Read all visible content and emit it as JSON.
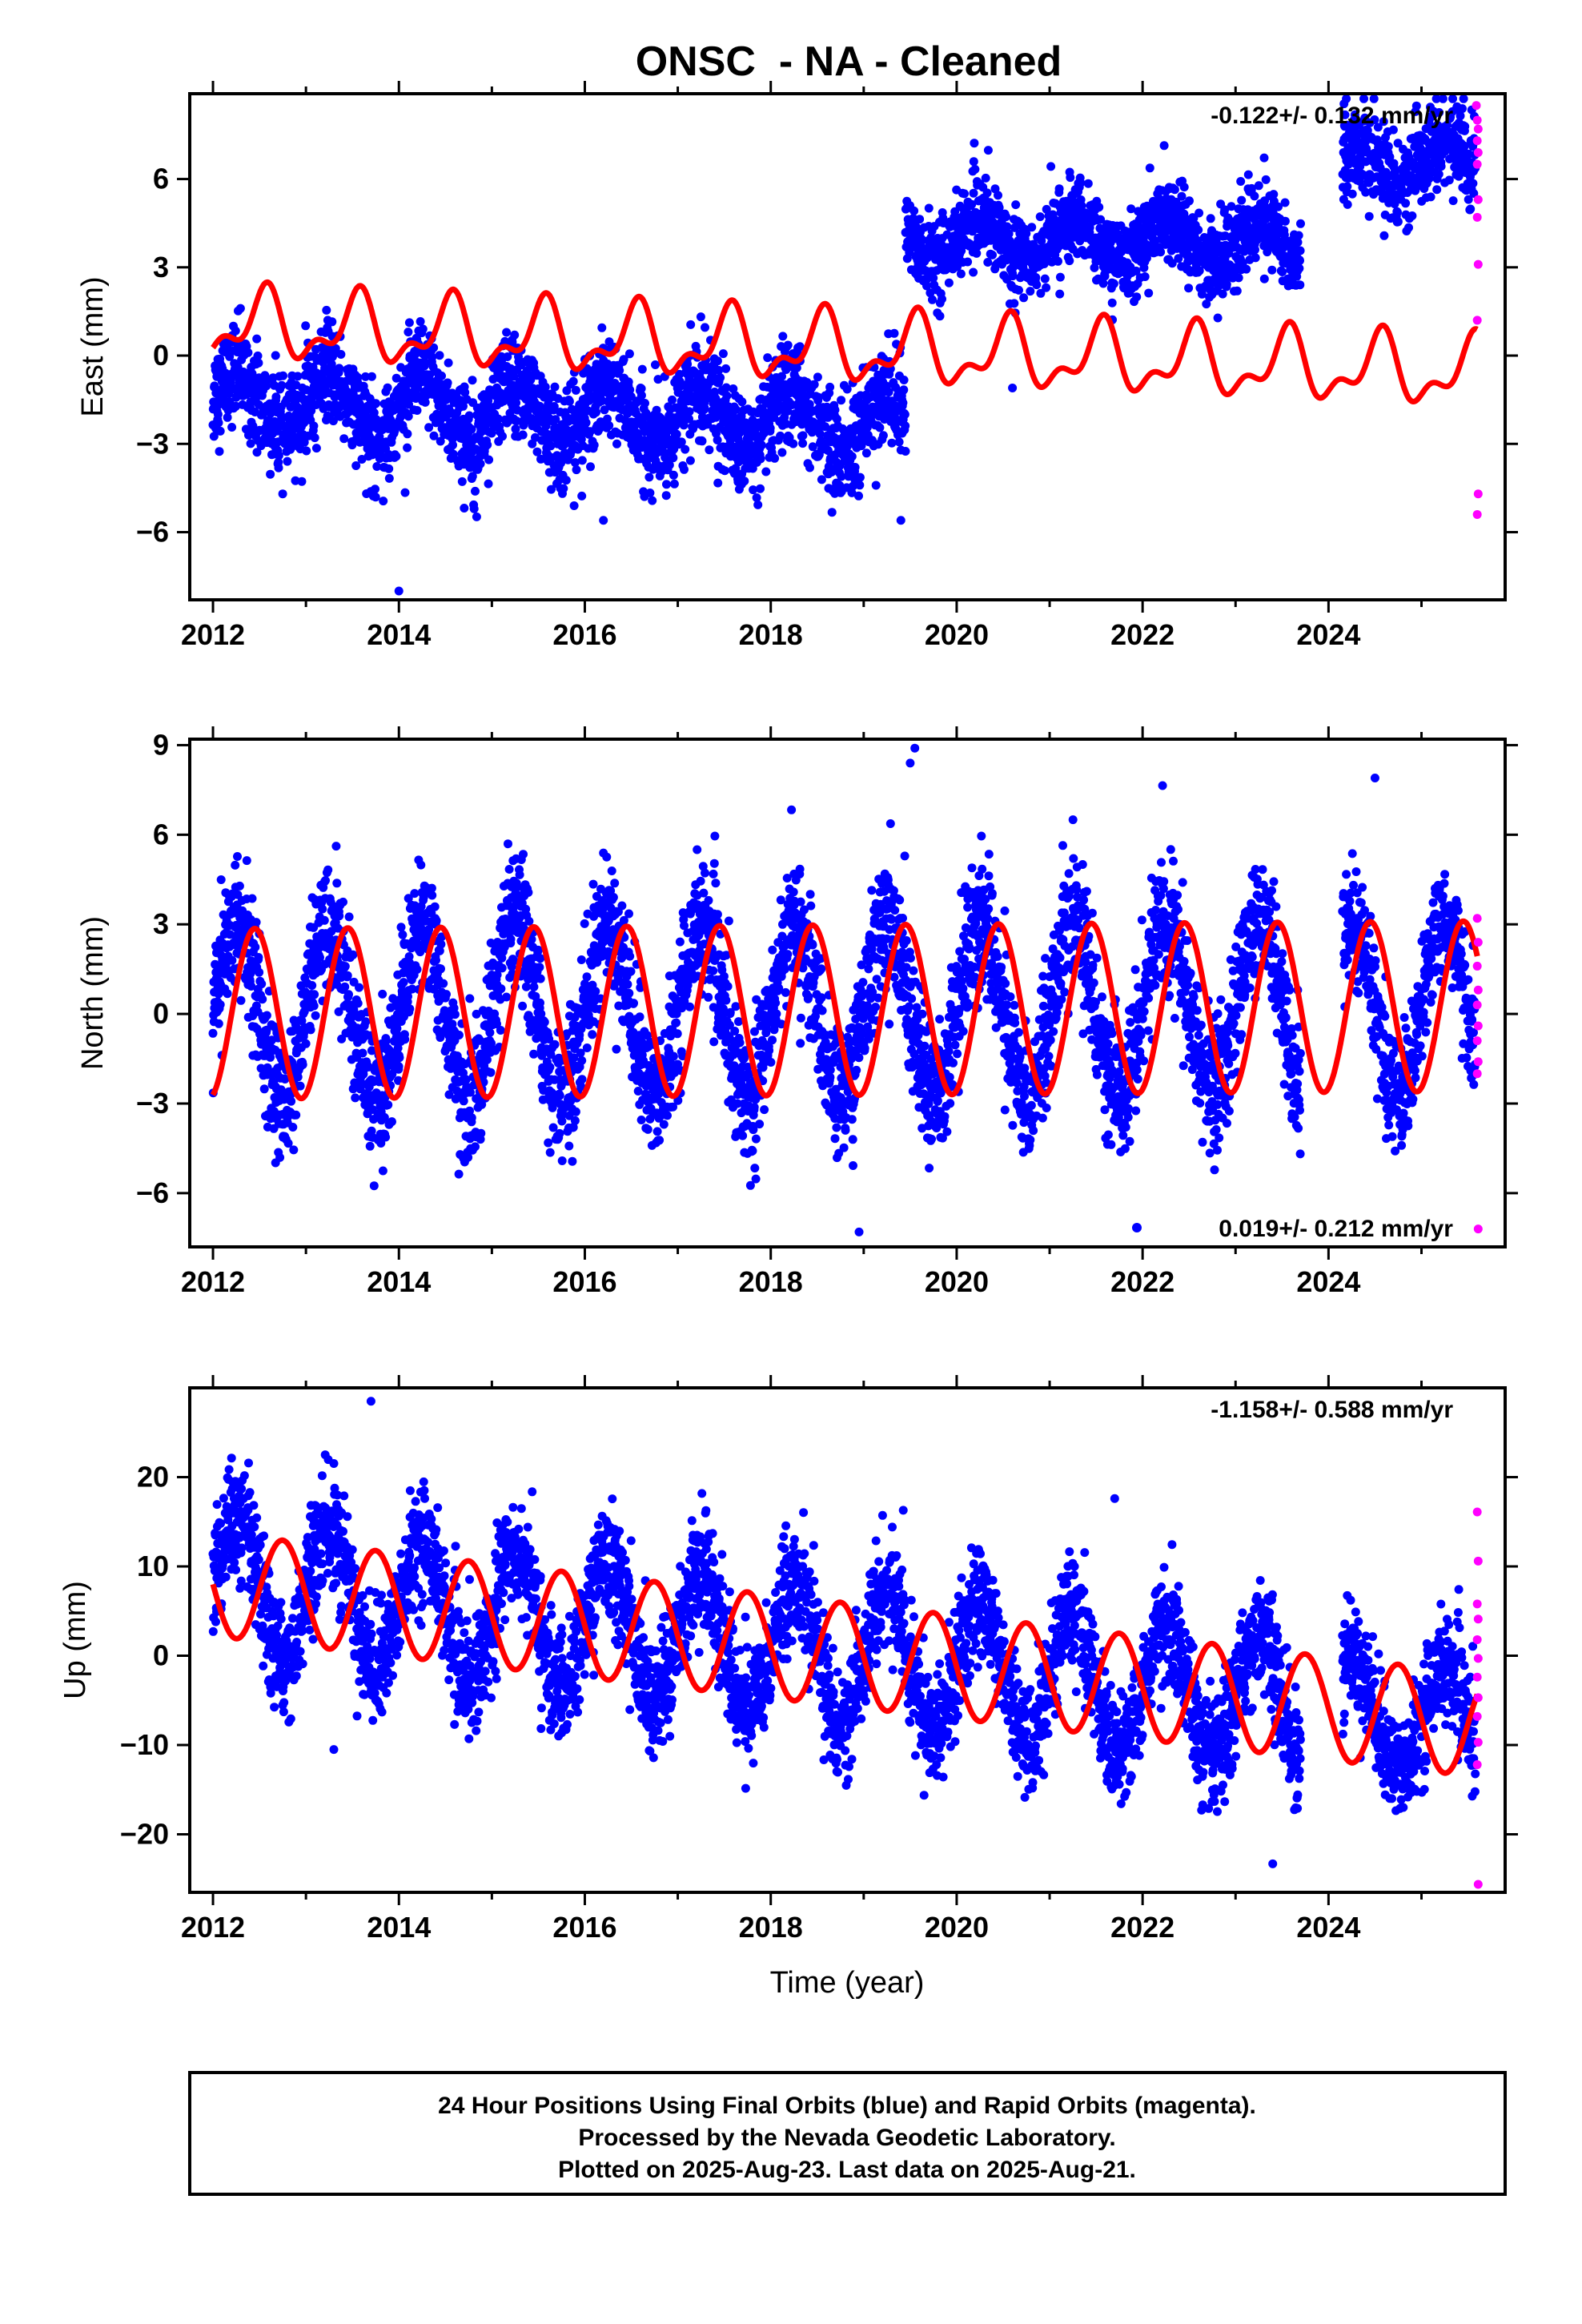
{
  "title": "ONSC  - NA - Cleaned",
  "xlabel": "Time (year)",
  "footer": {
    "line1": "24 Hour Positions Using Final Orbits (blue) and Rapid Orbits (magenta).",
    "line2": "Processed by the Nevada Geodetic Laboratory.",
    "line3": "Plotted on 2025-Aug-23. Last data on 2025-Aug-21."
  },
  "colors": {
    "final": "#0000ff",
    "rapid": "#ff00ff",
    "model": "#ff0000",
    "frame": "#000000"
  },
  "chart_data": [
    {
      "type": "scatter",
      "id": "east",
      "ylabel": "East (mm)",
      "rate": "-0.122+/- 0.132 mm/yr",
      "xlim": [
        2011.75,
        2025.9
      ],
      "ylim": [
        -8.3,
        8.9
      ],
      "xticks": [
        2012,
        2014,
        2016,
        2018,
        2020,
        2022,
        2024
      ],
      "yticks": [
        -6,
        -3,
        0,
        3,
        6
      ],
      "ytick_labels": [
        "−6",
        "−3",
        "0",
        "3",
        "6"
      ],
      "segments": [
        {
          "start": 2012.0,
          "end": 2019.45,
          "offset": -1.5,
          "trend": -0.12,
          "amp": 1.0,
          "spread": 1.1
        },
        {
          "start": 2019.45,
          "end": 2023.7,
          "offset": 4.4,
          "trend": -0.05,
          "amp": 0.7,
          "spread": 0.9
        },
        {
          "start": 2024.15,
          "end": 2025.58,
          "offset": 4.0,
          "trend": 0.2,
          "amp": 0.6,
          "spread": 1.0
        }
      ],
      "outliers": [
        [
          2014.0,
          -8.0
        ],
        [
          2020.6,
          -1.1
        ],
        [
          2019.4,
          -5.6
        ],
        [
          2016.2,
          -5.6
        ]
      ],
      "rapid": [
        [
          2025.59,
          8.5
        ],
        [
          2025.6,
          8.0
        ],
        [
          2025.61,
          7.7
        ],
        [
          2025.6,
          7.3
        ],
        [
          2025.61,
          6.9
        ],
        [
          2025.6,
          6.5
        ],
        [
          2025.61,
          5.3
        ],
        [
          2025.6,
          4.7
        ],
        [
          2025.61,
          3.1
        ],
        [
          2025.6,
          1.2
        ],
        [
          2025.61,
          -4.7
        ],
        [
          2025.6,
          -5.4
        ]
      ],
      "model": {
        "start": 2012.0,
        "end": 2025.6,
        "base": 1.05,
        "trend": -0.122,
        "t0": 2012.0,
        "amp_annual": 1.0,
        "phase_annual": 2012.55,
        "amp_semi": 0.55,
        "phase_semi": 2012.1
      }
    },
    {
      "type": "scatter",
      "id": "north",
      "ylabel": "North (mm)",
      "rate": "0.019+/- 0.212 mm/yr",
      "xlim": [
        2011.75,
        2025.9
      ],
      "ylim": [
        -7.8,
        9.2
      ],
      "xticks": [
        2012,
        2014,
        2016,
        2018,
        2020,
        2022,
        2024
      ],
      "yticks": [
        -6,
        -3,
        0,
        3,
        6,
        9
      ],
      "ytick_labels": [
        "−6",
        "−3",
        "0",
        "3",
        "6",
        "9"
      ],
      "segments": [
        {
          "start": 2012.0,
          "end": 2023.7,
          "offset": 0.0,
          "trend": 0.02,
          "amp": 2.85,
          "spread": 1.45
        },
        {
          "start": 2024.15,
          "end": 2025.58,
          "offset": 0.0,
          "trend": 0.02,
          "amp": 2.8,
          "spread": 1.3
        }
      ],
      "outliers": [
        [
          2019.55,
          8.9
        ],
        [
          2019.5,
          8.4
        ],
        [
          2018.95,
          -7.3
        ],
        [
          2024.5,
          7.9
        ]
      ],
      "rapid": [
        [
          2025.6,
          3.2
        ],
        [
          2025.61,
          2.4
        ],
        [
          2025.6,
          1.6
        ],
        [
          2025.61,
          0.8
        ],
        [
          2025.6,
          0.3
        ],
        [
          2025.61,
          -0.4
        ],
        [
          2025.6,
          -0.9
        ],
        [
          2025.61,
          -1.6
        ],
        [
          2025.6,
          -2.0
        ],
        [
          2025.61,
          -7.2
        ]
      ],
      "model": {
        "start": 2012.0,
        "end": 2025.6,
        "base": 0.0,
        "trend": 0.019,
        "t0": 2012.0,
        "amp_annual": 2.85,
        "phase_annual": 2012.45,
        "amp_semi": 0.0,
        "phase_semi": 2012.0
      }
    },
    {
      "type": "scatter",
      "id": "up",
      "ylabel": "Up (mm)",
      "rate": "-1.158+/- 0.588 mm/yr",
      "xlim": [
        2011.75,
        2025.9
      ],
      "ylim": [
        -26.5,
        30.0
      ],
      "xticks": [
        2012,
        2014,
        2016,
        2018,
        2020,
        2022,
        2024
      ],
      "yticks": [
        -20,
        -10,
        0,
        10,
        20
      ],
      "ytick_labels": [
        "−20",
        "−10",
        "0",
        "10",
        "20"
      ],
      "segments": [
        {
          "start": 2012.0,
          "end": 2023.7,
          "offset": 8.0,
          "trend": -1.16,
          "amp": 7.5,
          "spread": 4.2
        },
        {
          "start": 2024.15,
          "end": 2025.58,
          "offset": 8.0,
          "trend": -1.16,
          "amp": 6.0,
          "spread": 4.0
        }
      ],
      "outliers": [
        [
          2013.7,
          28.5
        ],
        [
          2021.7,
          17.6
        ],
        [
          2013.3,
          -10.5
        ],
        [
          2023.4,
          -23.3
        ]
      ],
      "rapid": [
        [
          2025.6,
          16.1
        ],
        [
          2025.61,
          10.6
        ],
        [
          2025.6,
          5.8
        ],
        [
          2025.61,
          4.1
        ],
        [
          2025.6,
          1.8
        ],
        [
          2025.61,
          -0.3
        ],
        [
          2025.6,
          -2.4
        ],
        [
          2025.61,
          -4.7
        ],
        [
          2025.6,
          -6.8
        ],
        [
          2025.61,
          -9.7
        ],
        [
          2025.6,
          -12.2
        ],
        [
          2025.61,
          -25.6
        ]
      ],
      "model": {
        "start": 2012.0,
        "end": 2025.6,
        "base": 8.0,
        "trend": -1.158,
        "t0": 2012.0,
        "amp_annual": 5.8,
        "phase_annual": 2012.75,
        "amp_semi": 0.0,
        "phase_semi": 2012.0
      }
    }
  ]
}
